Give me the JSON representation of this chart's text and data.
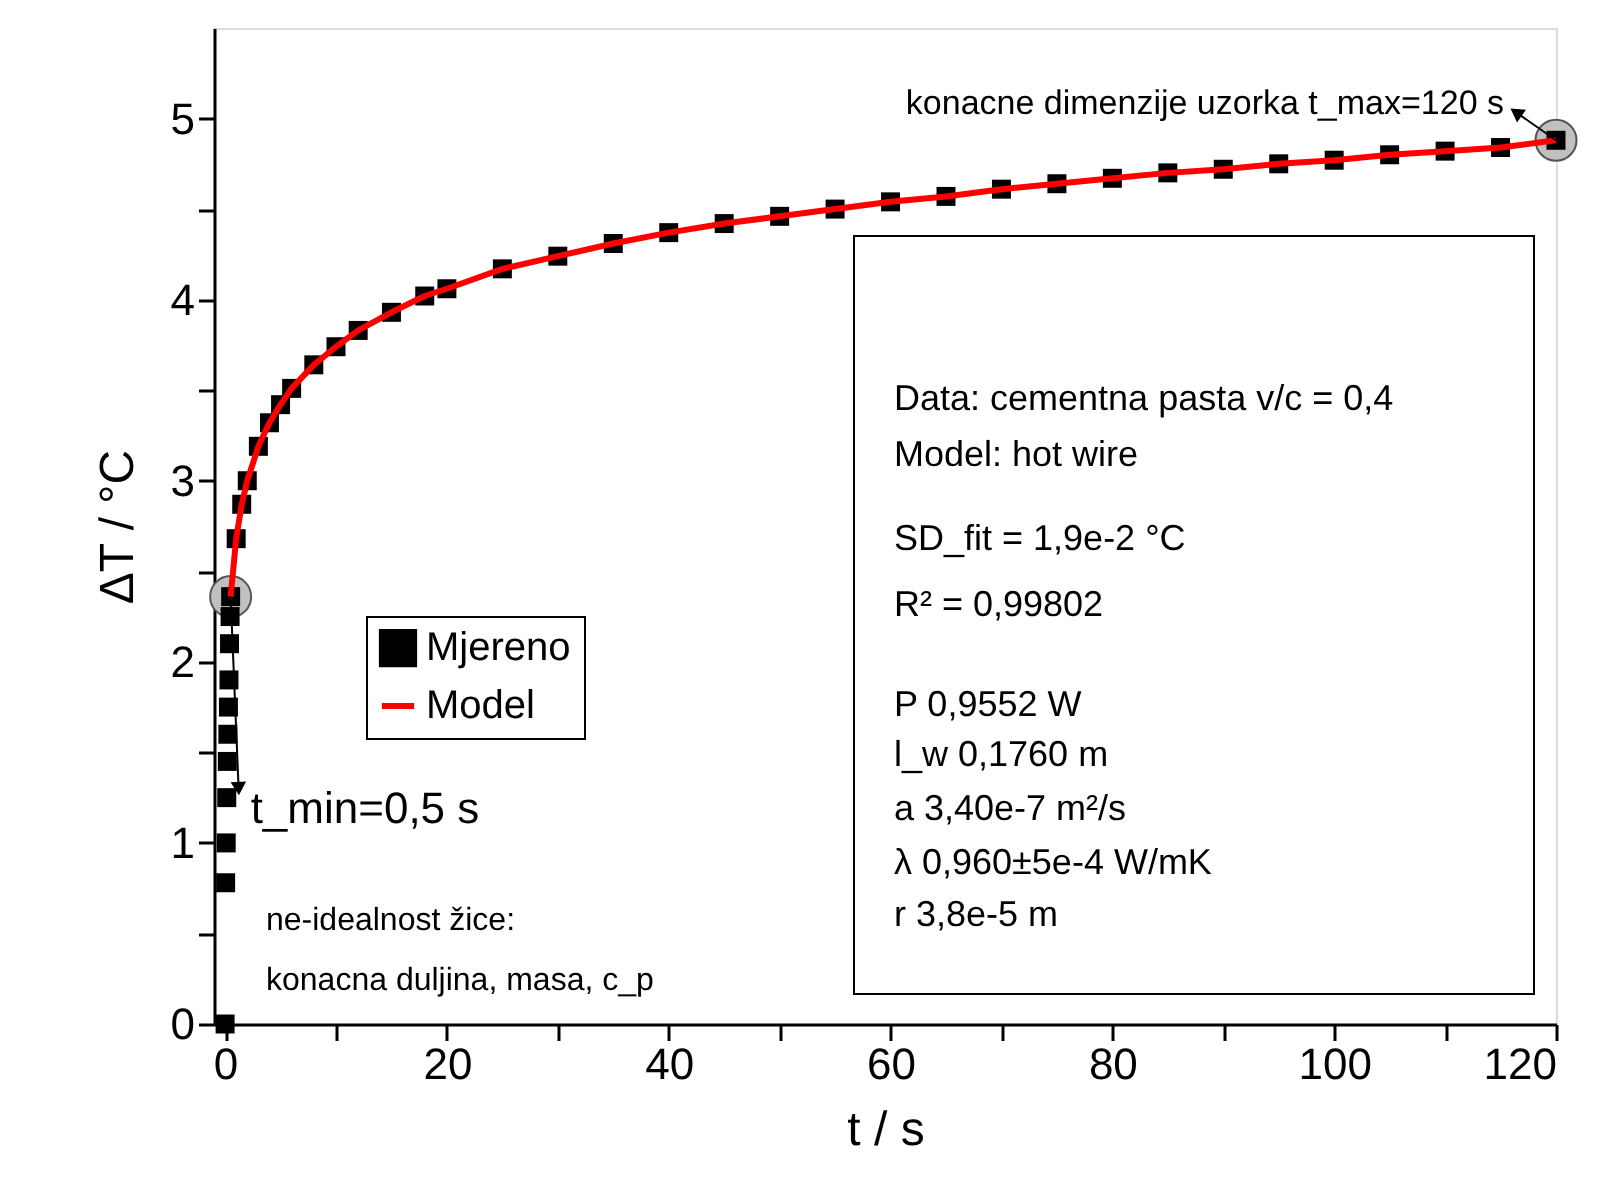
{
  "chart_data": {
    "type": "scatter",
    "xlabel": "t / s",
    "ylabel": "ΔT / °C",
    "xlim": [
      -1,
      120
    ],
    "ylim": [
      0,
      5.5
    ],
    "xticks": [
      0,
      {
        "value": 10,
        "label": null
      },
      20,
      {
        "value": 30,
        "label": null
      },
      40,
      {
        "value": 50,
        "label": null
      },
      60,
      {
        "value": 70,
        "label": null
      },
      80,
      {
        "value": 90,
        "label": null
      },
      100,
      {
        "value": 110,
        "label": null
      },
      120
    ],
    "yticks": [
      0,
      {
        "value": 0.5,
        "label": null
      },
      1,
      {
        "value": 1.5,
        "label": null
      },
      2,
      {
        "value": 2.5,
        "label": null
      },
      3,
      {
        "value": 3.5,
        "label": null
      },
      4,
      {
        "value": 4.5,
        "label": null
      },
      5
    ],
    "grid": false,
    "legend": "left",
    "series": [
      {
        "name": "Mjereno",
        "color": "#000000",
        "marker": "square",
        "x": [
          0,
          0.05,
          0.1,
          0.15,
          0.2,
          0.25,
          0.3,
          0.35,
          0.4,
          0.45,
          0.5,
          1,
          1.5,
          2,
          3,
          4,
          5,
          6,
          8,
          10,
          12,
          15,
          18,
          20,
          25,
          30,
          35,
          40,
          45,
          50,
          55,
          60,
          65,
          70,
          75,
          80,
          85,
          90,
          95,
          100,
          105,
          110,
          115,
          120
        ],
        "values": [
          0,
          0.78,
          1.0,
          1.25,
          1.45,
          1.6,
          1.75,
          1.9,
          2.1,
          2.25,
          2.36,
          2.68,
          2.87,
          3.0,
          3.19,
          3.32,
          3.42,
          3.51,
          3.64,
          3.74,
          3.83,
          3.93,
          4.02,
          4.06,
          4.17,
          4.24,
          4.31,
          4.37,
          4.42,
          4.46,
          4.5,
          4.54,
          4.57,
          4.61,
          4.64,
          4.67,
          4.7,
          4.72,
          4.75,
          4.77,
          4.8,
          4.82,
          4.84,
          4.88
        ]
      },
      {
        "name": "Model",
        "color": "#ff0000",
        "type": "line",
        "line_style": "solid",
        "x": [
          0.5,
          1,
          1.5,
          2,
          3,
          4,
          5,
          6,
          8,
          10,
          12,
          15,
          18,
          20,
          25,
          30,
          35,
          40,
          45,
          50,
          55,
          60,
          65,
          70,
          75,
          80,
          85,
          90,
          95,
          100,
          105,
          110,
          115,
          120
        ],
        "values": [
          2.36,
          2.68,
          2.87,
          3.0,
          3.19,
          3.32,
          3.42,
          3.51,
          3.64,
          3.74,
          3.83,
          3.93,
          4.02,
          4.06,
          4.17,
          4.24,
          4.31,
          4.37,
          4.42,
          4.46,
          4.5,
          4.54,
          4.57,
          4.61,
          4.64,
          4.67,
          4.7,
          4.72,
          4.75,
          4.77,
          4.8,
          4.82,
          4.84,
          4.88
        ]
      }
    ],
    "annotations": [
      {
        "text": "t_min=0,5 s",
        "x": 0.5,
        "y": 2.36
      },
      {
        "text": "konacne dimenzije uzorka t_max=120 s",
        "x": 120,
        "y": 4.88
      },
      "ne-idealnost žice:",
      "konacna duljina, masa, c_p",
      "Data: cementna pasta v/c = 0,4",
      "Model: hot wire",
      "SD_fit = 1,9e-2 °C",
      "R²        =  0,99802",
      "P        0,9552  W",
      "l_w      0,1760   m",
      "a        3,40e-7 m²/s",
      "λ        0,960±5e-4 W/mK",
      "r        3,8e-5   m"
    ]
  }
}
